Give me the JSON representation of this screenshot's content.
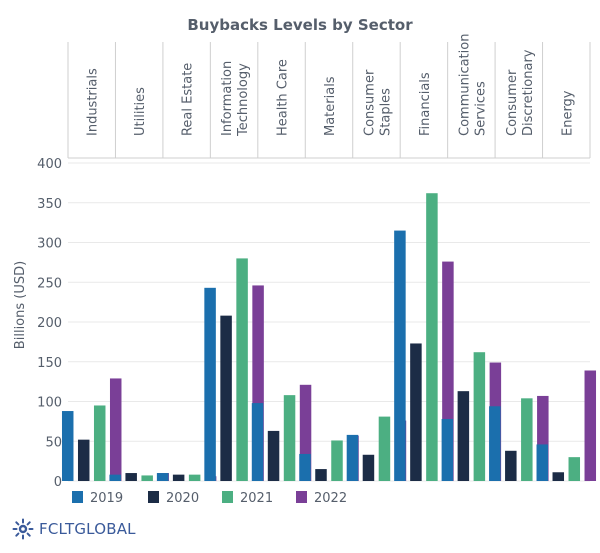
{
  "chart_data": {
    "type": "bar",
    "title": "Buybacks Levels by Sector",
    "ylabel": "Billions (USD)",
    "xlabel": "",
    "ylim": [
      0,
      400
    ],
    "yticks": [
      0,
      50,
      100,
      150,
      200,
      250,
      300,
      350,
      400
    ],
    "grid": true,
    "legend_position": "bottom-left",
    "categories": [
      "Industrials",
      "Utilities",
      "Real Estate",
      "Information Technology",
      "Health Care",
      "Materials",
      "Consumer Staples",
      "Financials",
      "Communication Services",
      "Consumer Discretionary",
      "Energy"
    ],
    "category_lines": [
      [
        "Industrials"
      ],
      [
        "Utilities"
      ],
      [
        "Real Estate"
      ],
      [
        "Information",
        "Technology"
      ],
      [
        "Health Care"
      ],
      [
        "Materials"
      ],
      [
        "Consumer",
        "Staples"
      ],
      [
        "Financials"
      ],
      [
        "Communication",
        "Services"
      ],
      [
        "Consumer",
        "Discretionary"
      ],
      [
        "Energy"
      ]
    ],
    "series": [
      {
        "name": "2019",
        "color": "#1b6fad",
        "values": [
          88,
          8,
          10,
          243,
          98,
          34,
          58,
          315,
          78,
          94,
          46
        ]
      },
      {
        "name": "2020",
        "color": "#1c2c46",
        "values": [
          52,
          10,
          8,
          208,
          63,
          15,
          33,
          173,
          113,
          38,
          11
        ]
      },
      {
        "name": "2021",
        "color": "#4caf82",
        "values": [
          95,
          7,
          8,
          280,
          108,
          51,
          81,
          362,
          162,
          104,
          30
        ]
      },
      {
        "name": "2022",
        "color": "#7a3f97",
        "values": [
          129,
          10,
          6,
          246,
          121,
          57,
          76,
          276,
          149,
          107,
          139
        ]
      }
    ]
  },
  "footer": {
    "logo_text": "FCLTGLOBAL",
    "logo_color": "#3a5a9a",
    "logo_icon": "gear-sun-icon"
  }
}
